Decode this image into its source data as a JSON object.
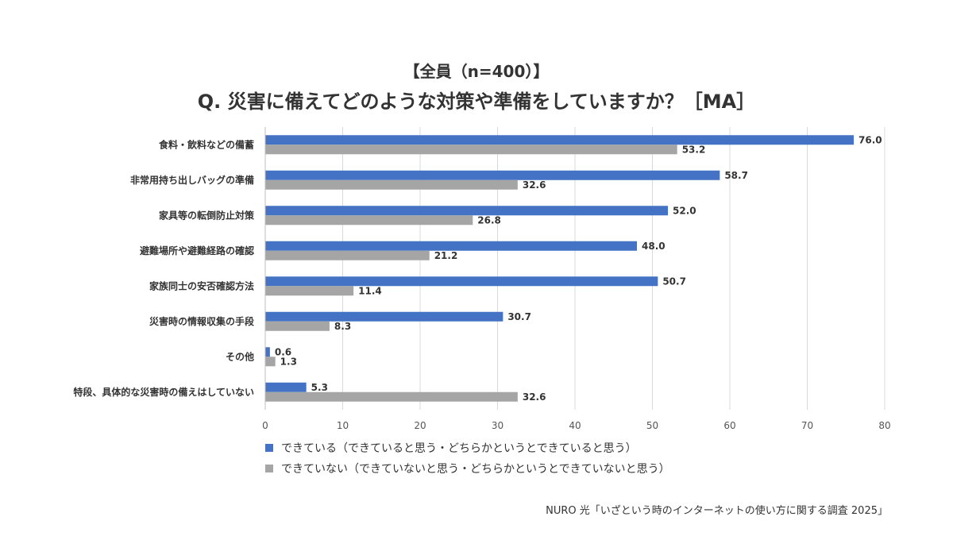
{
  "title_line1": "【全員（n=400）】",
  "title_line2": "Q. 災害に備えてどのような対策や準備をしていますか？［MA］",
  "source": "NURO 光「いざという時のインターネットの使い方に関する調査 2025」",
  "colors": {
    "series1": "#4472C4",
    "series2": "#A5A5A5",
    "grid": "#D9D9D9"
  },
  "chart_data": {
    "type": "bar",
    "orientation": "horizontal",
    "categories": [
      "食料・飲料などの備蓄",
      "非常用持ち出しバッグの準備",
      "家具等の転倒防止対策",
      "避難場所や避難経路の確認",
      "家族同士の安否確認方法",
      "災害時の情報収集の手段",
      "その他",
      "特段、具体的な災害時の備えはしていない"
    ],
    "series": [
      {
        "name": "できている（できていると思う・どちらかというとできていると思う）",
        "values": [
          76.0,
          58.7,
          52.0,
          48.0,
          50.7,
          30.7,
          0.6,
          5.3
        ],
        "labels": [
          "76.0",
          "58.7",
          "52.0",
          "48.0",
          "50.7",
          "30.7",
          "0.6",
          "5.3"
        ]
      },
      {
        "name": "できていない（できていないと思う・どちらかというとできていないと思う）",
        "values": [
          53.2,
          32.6,
          26.8,
          21.2,
          11.4,
          8.3,
          1.3,
          32.6
        ],
        "labels": [
          "53.2",
          "32.6",
          "26.8",
          "21.2",
          "11.4",
          "8.3",
          "1.3",
          "32.6"
        ]
      }
    ],
    "xlim": [
      0,
      80
    ],
    "xticks": [
      "0",
      "10",
      "20",
      "30",
      "40",
      "50",
      "60",
      "70",
      "80"
    ],
    "grid": true,
    "legend_position": "bottom"
  }
}
